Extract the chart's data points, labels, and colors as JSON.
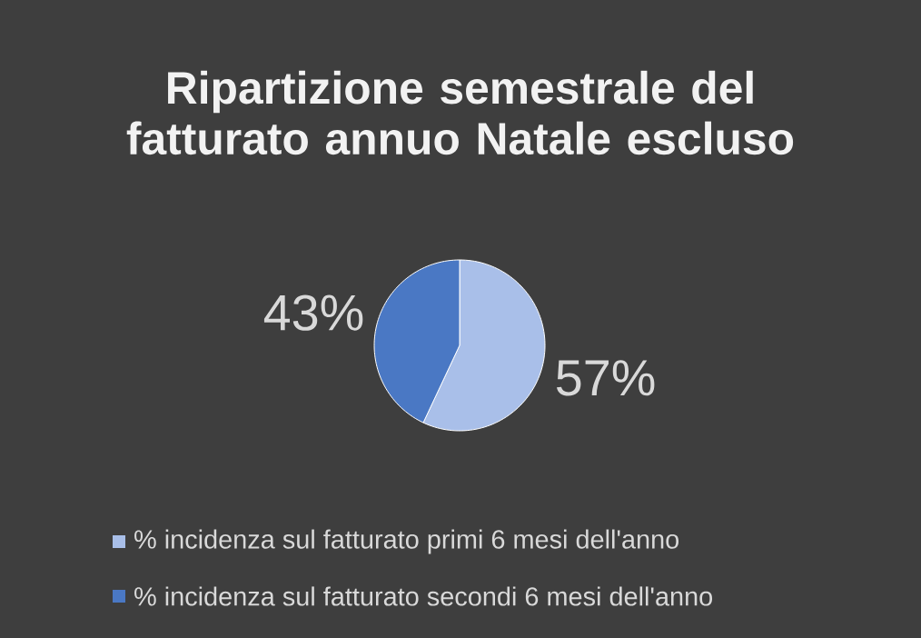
{
  "chart_data": {
    "type": "pie",
    "title": "Ripartizione semestrale del fatturato annuo Natale escluso",
    "categories": [
      "% incidenza sul fatturato primi 6 mesi dell'anno",
      "% incidenza sul fatturato secondi 6 mesi dell'anno"
    ],
    "values": [
      57,
      43
    ],
    "value_labels": [
      "57%",
      "43%"
    ],
    "colors": [
      "#a9bfe9",
      "#4a78c4"
    ],
    "legend": "bottom"
  }
}
